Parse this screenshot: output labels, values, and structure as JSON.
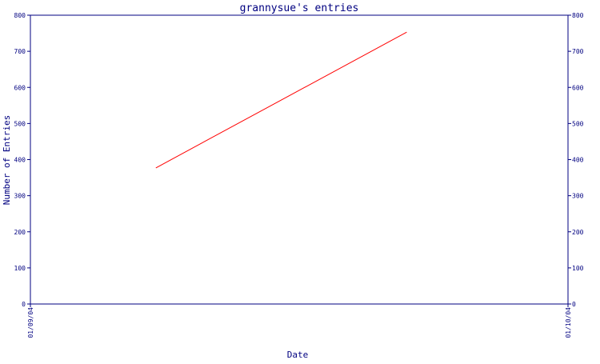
{
  "chart_data": {
    "type": "line",
    "title": "grannysue's entries",
    "xlabel": "Date",
    "ylabel": "Number of Entries",
    "x_ticks": [
      "01/09/04",
      "01/10/04"
    ],
    "y_ticks": [
      0,
      100,
      200,
      300,
      400,
      500,
      600,
      700,
      800
    ],
    "y_tick_labels": [
      "0",
      "100",
      "200",
      "300",
      "400",
      "500",
      "600",
      "700",
      "800"
    ],
    "ylim": [
      0,
      800
    ],
    "xlim": [
      "01/09/04",
      "01/10/04"
    ],
    "grid": false,
    "series": [
      {
        "x": [
          "2004-09-08",
          "2004-09-22"
        ],
        "values": [
          377,
          753
        ]
      }
    ],
    "colors": {
      "axis": "#000080",
      "text": "#000080",
      "series": "#ff0000",
      "background": "#ffffff"
    }
  }
}
